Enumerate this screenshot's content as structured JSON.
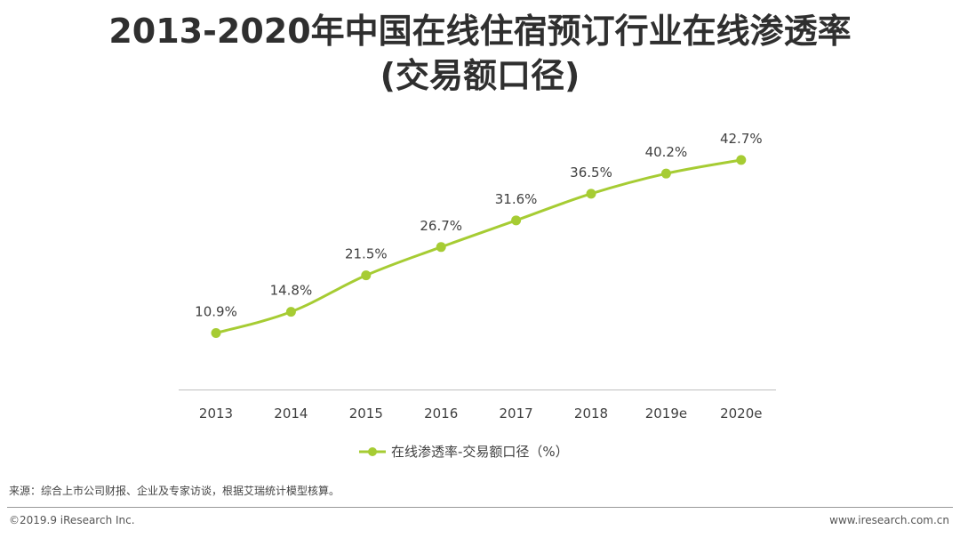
{
  "title_line1": "2013-2020年中国在线住宿预订行业在线渗透率",
  "title_line2": "(交易额口径)",
  "chart_data": {
    "type": "line",
    "categories": [
      "2013",
      "2014",
      "2015",
      "2016",
      "2017",
      "2018",
      "2019e",
      "2020e"
    ],
    "series": [
      {
        "name": "在线渗透率-交易额口径（%）",
        "values": [
          10.9,
          14.8,
          21.5,
          26.7,
          31.6,
          36.5,
          40.2,
          42.7
        ],
        "labels": [
          "10.9%",
          "14.8%",
          "21.5%",
          "26.7%",
          "31.6%",
          "36.5%",
          "40.2%",
          "42.7%"
        ],
        "color": "#a6cc33"
      }
    ],
    "legend_position": "bottom-center",
    "grid": false
  },
  "source": "来源：综合上市公司财报、企业及专家访谈，根据艾瑞统计模型核算。",
  "copyright": "©2019.9 iResearch Inc.",
  "website": "www.iresearch.com.cn"
}
